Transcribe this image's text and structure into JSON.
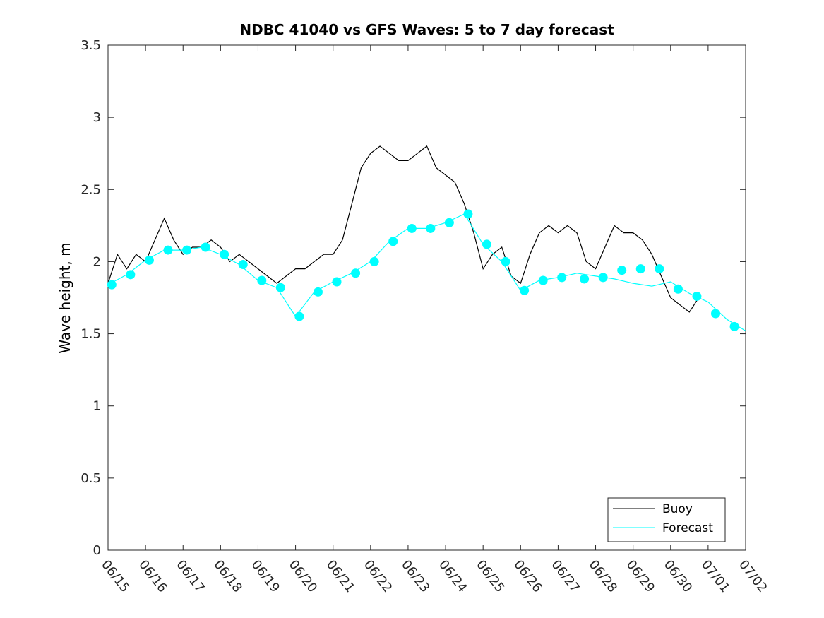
{
  "chart_data": {
    "type": "line",
    "title": "NDBC 41040 vs GFS Waves: 5 to 7 day forecast",
    "xlabel": "",
    "ylabel": "Wave height, m",
    "x_tick_labels": [
      "06/15",
      "06/16",
      "06/17",
      "06/18",
      "06/19",
      "06/20",
      "06/21",
      "06/22",
      "06/23",
      "06/24",
      "06/25",
      "06/26",
      "06/27",
      "06/28",
      "06/29",
      "06/30",
      "07/01",
      "07/02"
    ],
    "y_tick_labels": [
      "0",
      "0.5",
      "1",
      "1.5",
      "2",
      "2.5",
      "3",
      "3.5"
    ],
    "xlim": [
      0,
      17
    ],
    "ylim": [
      0,
      3.5
    ],
    "grid": false,
    "legend_position": "bottom-right",
    "series": [
      {
        "name": "Buoy",
        "color": "#000000",
        "style": "line",
        "x": [
          0,
          0.25,
          0.5,
          0.75,
          1,
          1.25,
          1.5,
          1.75,
          2,
          2.25,
          2.5,
          2.75,
          3,
          3.25,
          3.5,
          3.75,
          4,
          4.25,
          4.5,
          4.75,
          5,
          5.25,
          5.5,
          5.75,
          6,
          6.25,
          6.5,
          6.75,
          7,
          7.25,
          7.5,
          7.75,
          8,
          8.25,
          8.5,
          8.75,
          9,
          9.25,
          9.5,
          9.75,
          10,
          10.25,
          10.5,
          10.75,
          11,
          11.25,
          11.5,
          11.75,
          12,
          12.25,
          12.5,
          12.75,
          13,
          13.25,
          13.5,
          13.75,
          14,
          14.25,
          14.5,
          14.75,
          15,
          15.25,
          15.5,
          15.75,
          16,
          16.25,
          16.5
        ],
        "y": [
          1.85,
          2.05,
          1.95,
          2.05,
          2.0,
          2.15,
          2.3,
          2.15,
          2.05,
          2.1,
          2.1,
          2.15,
          2.1,
          2.0,
          2.05,
          2.0,
          1.95,
          1.9,
          1.85,
          1.9,
          1.95,
          1.95,
          2.0,
          2.05,
          2.05,
          2.15,
          2.4,
          2.65,
          2.75,
          2.8,
          2.75,
          2.7,
          2.7,
          2.75,
          2.8,
          2.65,
          2.6,
          2.55,
          2.4,
          2.2,
          1.95,
          2.05,
          2.1,
          1.9,
          1.85,
          2.05,
          2.2,
          2.25,
          2.2,
          2.25,
          2.2,
          2.0,
          1.95,
          2.1,
          2.25,
          2.2,
          2.2,
          2.15,
          2.05,
          1.9,
          1.75,
          1.7,
          1.65,
          1.75,
          null,
          null,
          null
        ]
      },
      {
        "name": "Forecast",
        "color": "#00ffff",
        "style": "line",
        "x": [
          0,
          0.5,
          1,
          1.5,
          2,
          2.5,
          3,
          3.5,
          4,
          4.5,
          5,
          5.5,
          6,
          6.5,
          7,
          7.5,
          8,
          8.5,
          9,
          9.5,
          10,
          10.5,
          11,
          11.5,
          12,
          12.5,
          13,
          13.5,
          14,
          14.5,
          15,
          15.5,
          16,
          16.5,
          17
        ],
        "y": [
          1.84,
          1.91,
          2.01,
          2.08,
          2.08,
          2.1,
          2.05,
          1.98,
          1.87,
          1.82,
          1.62,
          1.79,
          1.86,
          1.92,
          2.0,
          2.14,
          2.23,
          2.23,
          2.27,
          2.33,
          2.12,
          2.0,
          1.8,
          1.87,
          1.89,
          1.92,
          1.9,
          1.88,
          1.85,
          1.83,
          1.86,
          1.78,
          1.72,
          1.6,
          1.52
        ]
      },
      {
        "name": "",
        "color": "#00ffff",
        "style": "markers",
        "x": [
          0.1,
          0.6,
          1.1,
          1.6,
          2.1,
          2.6,
          3.1,
          3.6,
          4.1,
          4.6,
          5.1,
          5.6,
          6.1,
          6.6,
          7.1,
          7.6,
          8.1,
          8.6,
          9.1,
          9.6,
          10.1,
          10.6,
          11.1,
          11.6,
          12.1,
          12.7,
          13.2,
          13.7,
          14.2,
          14.7,
          15.2,
          15.7,
          16.2,
          16.7
        ],
        "y": [
          1.84,
          1.91,
          2.01,
          2.08,
          2.08,
          2.1,
          2.05,
          1.98,
          1.87,
          1.82,
          1.62,
          1.79,
          1.86,
          1.92,
          2.0,
          2.14,
          2.23,
          2.23,
          2.27,
          2.33,
          2.12,
          2.0,
          1.8,
          1.87,
          1.89,
          1.88,
          1.89,
          1.94,
          1.95,
          1.95,
          1.81,
          1.76,
          1.64,
          1.55
        ]
      }
    ]
  },
  "legend": {
    "buoy_label": "Buoy",
    "forecast_label": "Forecast"
  }
}
